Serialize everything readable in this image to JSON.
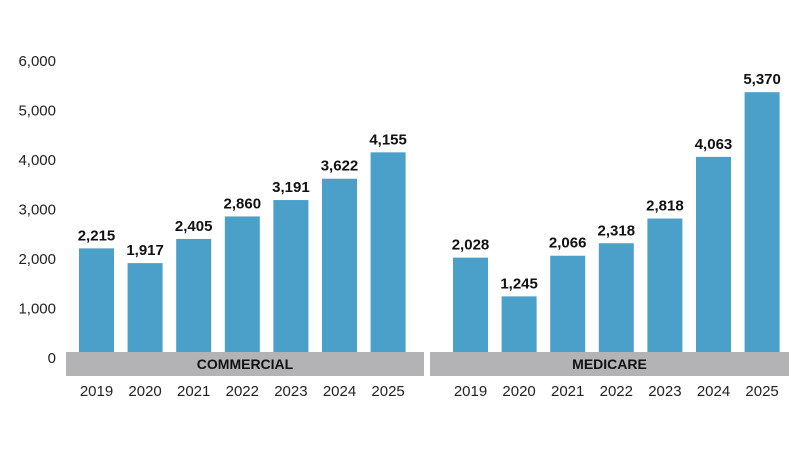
{
  "chart_data": {
    "type": "bar",
    "y_ticks": [
      "6,000",
      "5,000",
      "4,000",
      "3,000",
      "2,000",
      "1,000",
      "0"
    ],
    "ylim": [
      0,
      6000
    ],
    "grid": false,
    "bar_color": "#4aa0c8",
    "group_band_color": "#b3b3b6",
    "groups": [
      {
        "label": "COMMERCIAL",
        "categories": [
          "2019",
          "2020",
          "2021",
          "2022",
          "2023",
          "2024",
          "2025"
        ],
        "values": [
          2215,
          1917,
          2405,
          2860,
          3191,
          3622,
          4155
        ],
        "value_labels": [
          "2,215",
          "1,917",
          "2,405",
          "2,860",
          "3,191",
          "3,622",
          "4,155"
        ]
      },
      {
        "label": "MEDICARE",
        "categories": [
          "2019",
          "2020",
          "2021",
          "2022",
          "2023",
          "2024",
          "2025"
        ],
        "values": [
          2028,
          1245,
          2066,
          2318,
          2818,
          4063,
          5370
        ],
        "value_labels": [
          "2,028",
          "1,245",
          "2,066",
          "2,318",
          "2,818",
          "4,063",
          "5,370"
        ]
      }
    ]
  }
}
